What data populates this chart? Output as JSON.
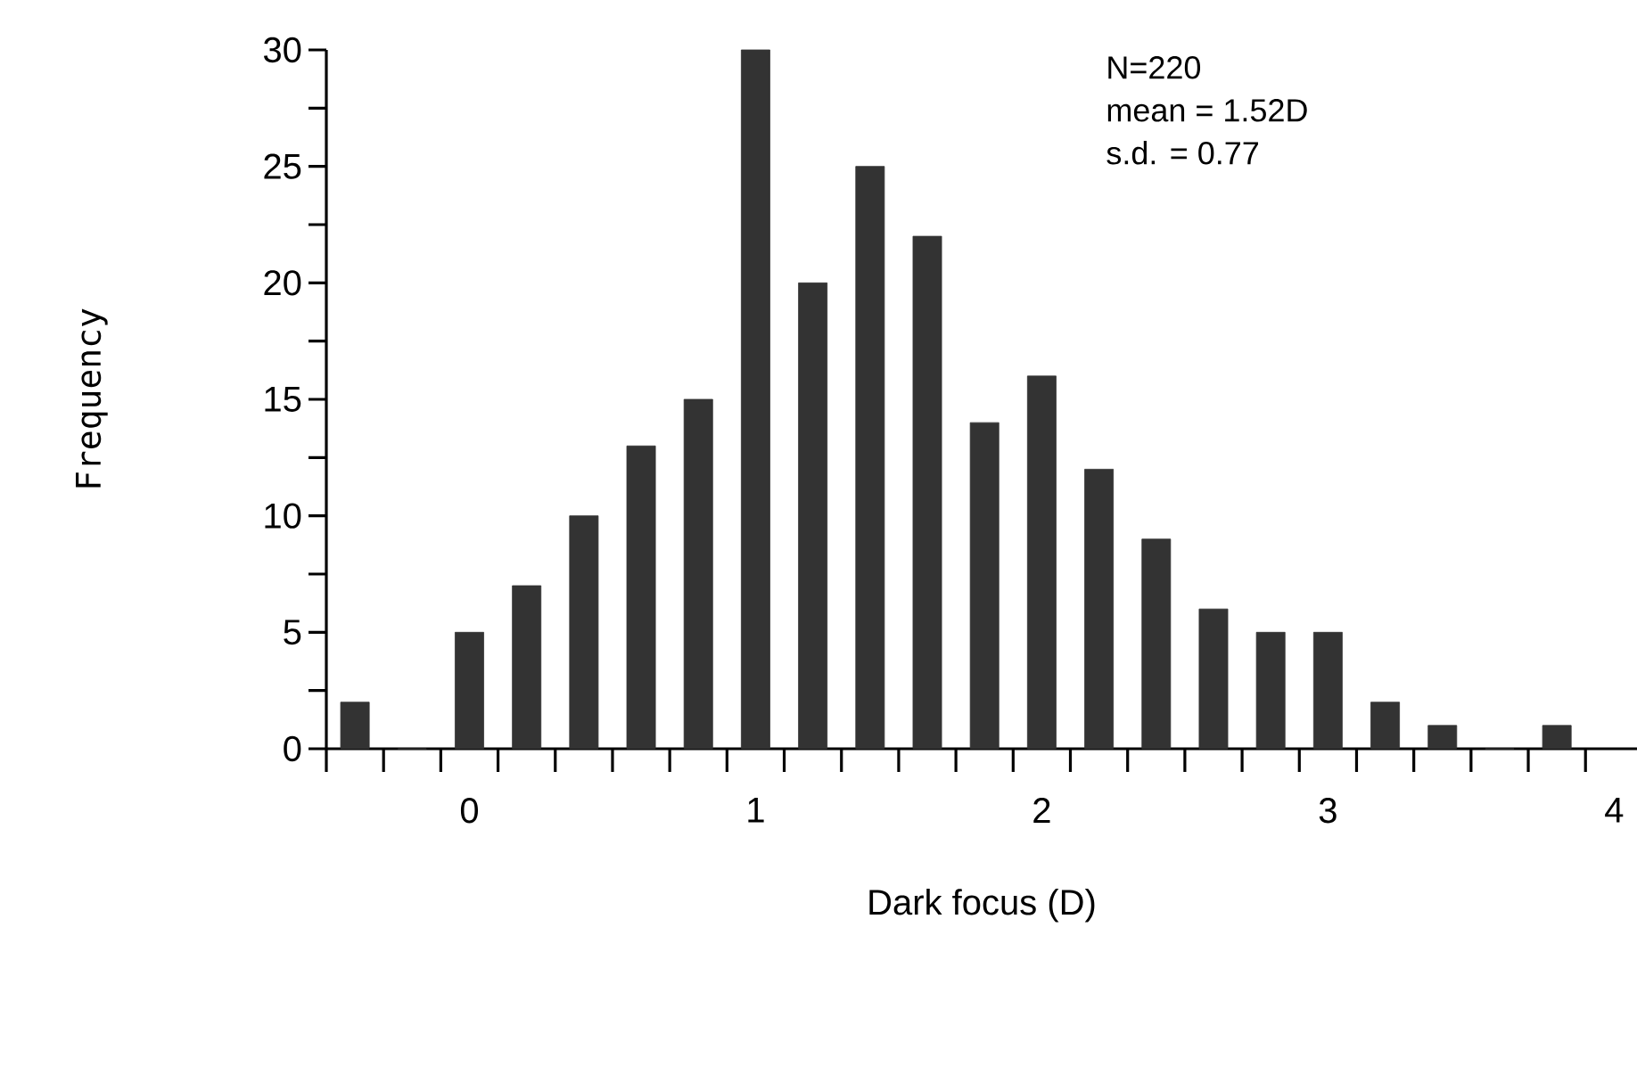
{
  "chart_data": {
    "type": "histogram",
    "xlabel": "Dark focus (D)",
    "ylabel": "Frequency",
    "annotations": [
      "N=220",
      "mean = 1.52D",
      "s.d. = 0.77"
    ],
    "bins": [
      -0.5,
      -0.3,
      -0.1,
      0.1,
      0.3,
      0.5,
      0.7,
      0.9,
      1.1,
      1.3,
      1.5,
      1.7,
      1.9,
      2.1,
      2.3,
      2.5,
      2.7,
      2.9,
      3.1,
      3.3,
      3.5,
      3.7,
      3.9
    ],
    "values": [
      2,
      0,
      5,
      7,
      10,
      13,
      15,
      30,
      20,
      25,
      22,
      14,
      16,
      12,
      9,
      6,
      5,
      5,
      2,
      1,
      0,
      1
    ],
    "color": "#333333",
    "xlim": [
      -0.5,
      4.08
    ],
    "xticks": [
      0,
      1,
      2,
      3,
      4,
      {
        "value": -0.5,
        "label": null
      },
      {
        "value": -0.3,
        "label": null
      },
      {
        "value": -0.1,
        "label": null
      },
      {
        "value": 0.1,
        "label": null
      },
      {
        "value": 0.3,
        "label": null
      },
      {
        "value": 0.5,
        "label": null
      },
      {
        "value": 0.7,
        "label": null
      },
      {
        "value": 0.9,
        "label": null
      },
      {
        "value": 1.1,
        "label": null
      },
      {
        "value": 1.3,
        "label": null
      },
      {
        "value": 1.5,
        "label": null
      },
      {
        "value": 1.7,
        "label": null
      },
      {
        "value": 1.9,
        "label": null
      },
      {
        "value": 2.1,
        "label": null
      },
      {
        "value": 2.3,
        "label": null
      },
      {
        "value": 2.5,
        "label": null
      },
      {
        "value": 2.7,
        "label": null
      },
      {
        "value": 2.9,
        "label": null
      },
      {
        "value": 3.1,
        "label": null
      },
      {
        "value": 3.3,
        "label": null
      },
      {
        "value": 3.5,
        "label": null
      },
      {
        "value": 3.7,
        "label": null
      },
      {
        "value": 3.9,
        "label": null
      }
    ],
    "ylim": [
      0,
      30
    ],
    "yticks": [
      0,
      5,
      10,
      15,
      20,
      25,
      30,
      {
        "value": 2.5,
        "label": null
      },
      {
        "value": 7.5,
        "label": null
      },
      {
        "value": 12.5,
        "label": null
      },
      {
        "value": 17.5,
        "label": null
      },
      {
        "value": 22.5,
        "label": null
      },
      {
        "value": 27.5,
        "label": null
      }
    ]
  }
}
